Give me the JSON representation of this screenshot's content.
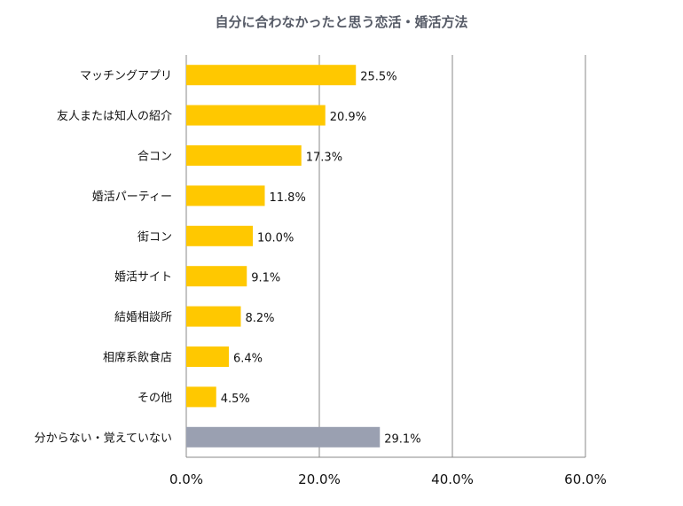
{
  "chart_data": {
    "type": "bar",
    "orientation": "horizontal",
    "title": "自分に合わなかったと思う恋活・婚活方法",
    "categories": [
      "マッチングアプリ",
      "友人または知人の紹介",
      "合コン",
      "婚活パーティー",
      "街コン",
      "婚活サイト",
      "結婚相談所",
      "相席系飲食店",
      "その他",
      "分からない・覚えていない"
    ],
    "values": [
      25.5,
      20.9,
      17.3,
      11.8,
      10.0,
      9.1,
      8.2,
      6.4,
      4.5,
      29.1
    ],
    "value_labels": [
      "25.5%",
      "20.9%",
      "17.3%",
      "11.8%",
      "10.0%",
      "9.1%",
      "8.2%",
      "6.4%",
      "4.5%",
      "29.1%"
    ],
    "xlim": [
      0,
      60
    ],
    "xticks": [
      0,
      20,
      40,
      60
    ],
    "xtick_labels": [
      "0.0%",
      "20.0%",
      "40.0%",
      "60.0%"
    ],
    "grid": true,
    "colors": {
      "default_bar": "#ffc800",
      "highlight_bar": "#9aa0b1",
      "gridline": "#888888",
      "title": "#555a66"
    },
    "highlight_indices": [
      9
    ]
  }
}
